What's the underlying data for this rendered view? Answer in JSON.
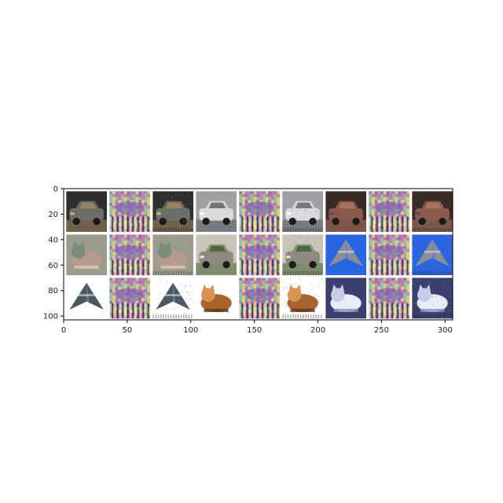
{
  "figure": {
    "x_axis": {
      "range": [
        0,
        306
      ],
      "ticks": [
        0,
        50,
        100,
        150,
        200,
        250,
        300
      ],
      "tick_labels": [
        "0",
        "50",
        "100",
        "150",
        "200",
        "250",
        "300"
      ]
    },
    "y_axis": {
      "range": [
        0,
        103
      ],
      "inverted": true,
      "ticks": [
        0,
        20,
        40,
        60,
        80,
        100
      ],
      "tick_labels": [
        "0",
        "20",
        "40",
        "60",
        "80",
        "100"
      ]
    },
    "grid": {
      "rows": 3,
      "cols": 9,
      "tile_size": 32,
      "gap": 2,
      "background": "#ffffff"
    },
    "tiles": [
      {
        "subject": "car",
        "kind": "original",
        "palette": [
          "#2e2e2c",
          "#6d6e66",
          "#a58a62",
          "#c9b37a"
        ]
      },
      {
        "subject": "pattern",
        "kind": "perturbation",
        "palette": [
          "#8a6fb8",
          "#d96a9f",
          "#7fc7a3",
          "#e8d36a"
        ]
      },
      {
        "subject": "car",
        "kind": "adversarial",
        "palette": [
          "#2e2e2c",
          "#6d6e66",
          "#a58a62",
          "#c9b37a"
        ]
      },
      {
        "subject": "car",
        "kind": "original",
        "palette": [
          "#9ea0a2",
          "#d9dadc",
          "#5b5e61",
          "#ffffff"
        ]
      },
      {
        "subject": "pattern",
        "kind": "perturbation",
        "palette": [
          "#8a6fb8",
          "#d96a9f",
          "#7fc7a3",
          "#e8d36a"
        ]
      },
      {
        "subject": "car",
        "kind": "adversarial",
        "palette": [
          "#9ea0a2",
          "#d9dadc",
          "#5b5e61",
          "#ffffff"
        ]
      },
      {
        "subject": "car",
        "kind": "original",
        "palette": [
          "#3a2a26",
          "#8a5a4c",
          "#b07a66",
          "#5c4a44"
        ]
      },
      {
        "subject": "pattern",
        "kind": "perturbation",
        "palette": [
          "#8a6fb8",
          "#d96a9f",
          "#7fc7a3",
          "#e8d36a"
        ]
      },
      {
        "subject": "car",
        "kind": "adversarial",
        "palette": [
          "#3a2a26",
          "#8a5a4c",
          "#b07a66",
          "#5c4a44"
        ]
      },
      {
        "subject": "cat",
        "kind": "original",
        "palette": [
          "#9c9c8c",
          "#b79a8a",
          "#7d8c7a",
          "#d8c8b8"
        ]
      },
      {
        "subject": "pattern",
        "kind": "perturbation",
        "palette": [
          "#8a6fb8",
          "#d96a9f",
          "#7fc7a3",
          "#e8d36a"
        ]
      },
      {
        "subject": "cat",
        "kind": "adversarial",
        "palette": [
          "#9c9c8c",
          "#b79a8a",
          "#7d8c7a",
          "#d8c8b8"
        ]
      },
      {
        "subject": "car",
        "kind": "original",
        "palette": [
          "#c8c4b8",
          "#8d8a80",
          "#3f5e2c",
          "#e9e7e0"
        ]
      },
      {
        "subject": "pattern",
        "kind": "perturbation",
        "palette": [
          "#8a6fb8",
          "#d96a9f",
          "#7fc7a3",
          "#e8d36a"
        ]
      },
      {
        "subject": "car",
        "kind": "adversarial",
        "palette": [
          "#c8c4b8",
          "#8d8a80",
          "#3f5e2c",
          "#e9e7e0"
        ]
      },
      {
        "subject": "airplane",
        "kind": "original",
        "palette": [
          "#2b64e0",
          "#4a7ae8",
          "#8c8c96",
          "#d0d4dc"
        ]
      },
      {
        "subject": "pattern",
        "kind": "perturbation",
        "palette": [
          "#8a6fb8",
          "#d96a9f",
          "#7fc7a3",
          "#e8d36a"
        ]
      },
      {
        "subject": "airplane",
        "kind": "adversarial",
        "palette": [
          "#2b64e0",
          "#4a7ae8",
          "#8c8c96",
          "#d0d4dc"
        ]
      },
      {
        "subject": "airplane",
        "kind": "original",
        "palette": [
          "#ffffff",
          "#7c8a98",
          "#4b5864",
          "#cfd8e0"
        ]
      },
      {
        "subject": "pattern",
        "kind": "perturbation",
        "palette": [
          "#8a6fb8",
          "#d96a9f",
          "#7fc7a3",
          "#e8d36a"
        ]
      },
      {
        "subject": "airplane",
        "kind": "adversarial",
        "palette": [
          "#ffffff",
          "#7c8a98",
          "#4b5864",
          "#cfd8e0"
        ]
      },
      {
        "subject": "cat",
        "kind": "original",
        "palette": [
          "#ffffff",
          "#a8642c",
          "#d89450",
          "#5a3418"
        ]
      },
      {
        "subject": "pattern",
        "kind": "perturbation",
        "palette": [
          "#8a6fb8",
          "#d96a9f",
          "#7fc7a3",
          "#e8d36a"
        ]
      },
      {
        "subject": "cat",
        "kind": "adversarial",
        "palette": [
          "#ffffff",
          "#a8642c",
          "#d89450",
          "#5a3418"
        ]
      },
      {
        "subject": "cat",
        "kind": "original",
        "palette": [
          "#3a3f70",
          "#e8ecf8",
          "#c8cce8",
          "#8a8fb8"
        ]
      },
      {
        "subject": "pattern",
        "kind": "perturbation",
        "palette": [
          "#8a6fb8",
          "#d96a9f",
          "#7fc7a3",
          "#e8d36a"
        ]
      },
      {
        "subject": "cat",
        "kind": "adversarial",
        "palette": [
          "#3a3f70",
          "#e8ecf8",
          "#c8cce8",
          "#8a8fb8"
        ]
      }
    ]
  }
}
